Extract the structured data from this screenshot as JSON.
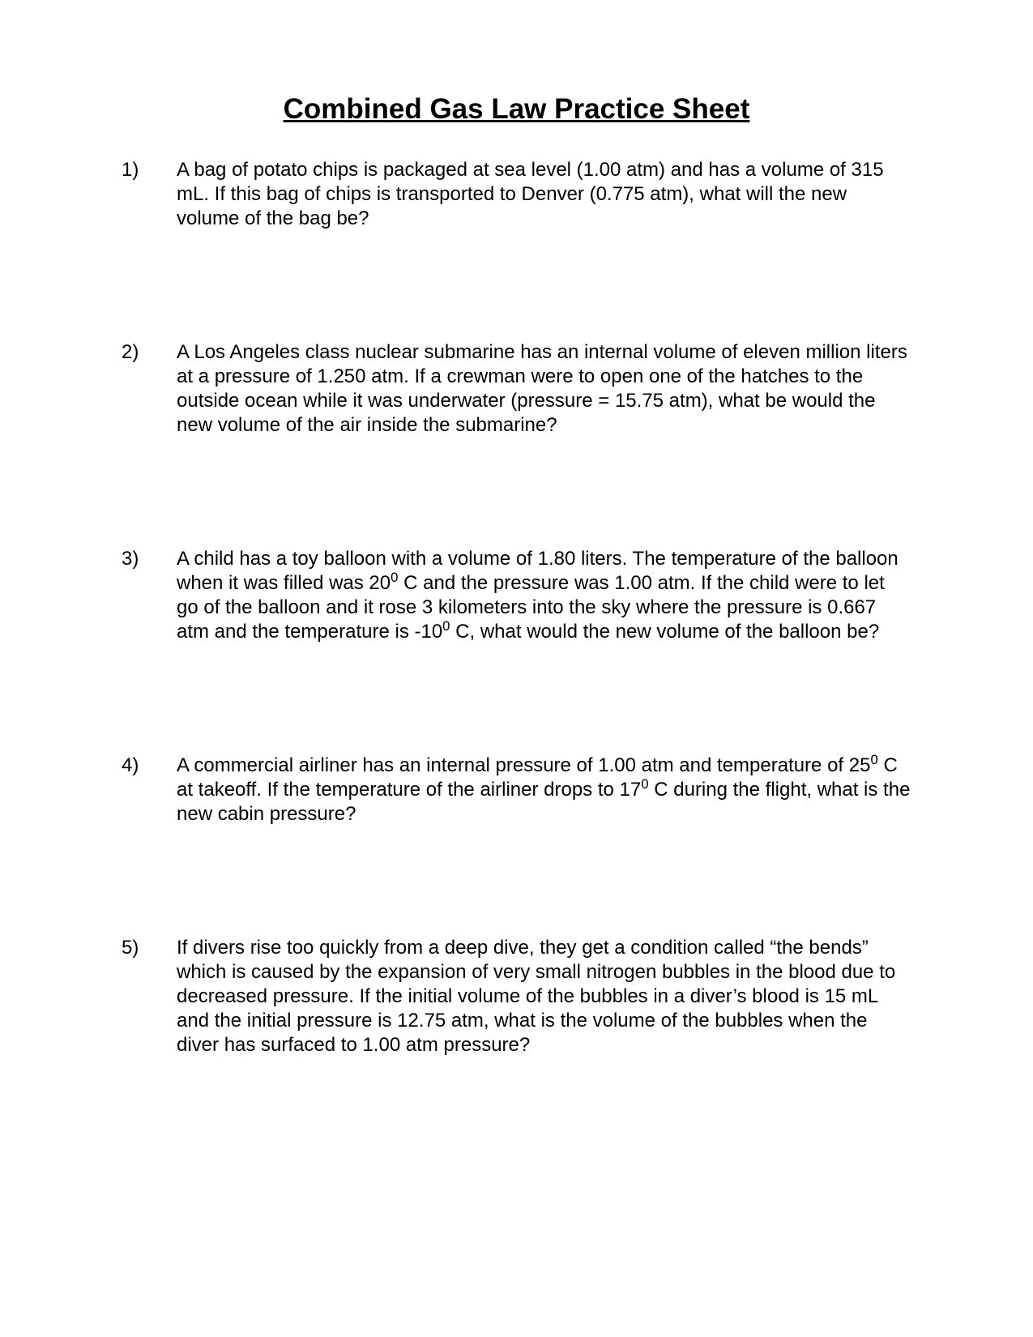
{
  "title": "Combined Gas Law Practice Sheet",
  "title_fontsize": 35,
  "body_fontsize": 24,
  "text_color": "#000000",
  "background_color": "#ffffff",
  "questions": [
    {
      "num": "1)",
      "html": "A bag of potato chips is packaged at sea level (1.00 atm) and has a volume of 315 mL.  If this bag of chips is transported to Denver (0.775 atm), what will the new volume of the bag be?"
    },
    {
      "num": "2)",
      "html": "A Los Angeles class nuclear submarine has an internal volume of eleven million liters at a pressure of 1.250 atm.  If a crewman were to open one of the hatches to the outside ocean while it was underwater (pressure = 15.75 atm), what be would the new volume of the air inside the submarine?"
    },
    {
      "num": "3)",
      "html": "A child has a toy balloon with a volume of 1.80 liters.  The temperature of the balloon when it was filled was 20<sup>0</sup> C and the pressure was 1.00 atm.  If the child were to let go of the balloon and it rose 3 kilometers into the sky where the pressure is 0.667 atm and the temperature is -10<sup>0</sup> C, what would the new volume of the balloon be?"
    },
    {
      "num": "4)",
      "html": "A commercial airliner has an internal pressure of 1.00 atm and temperature of 25<sup>0</sup> C at takeoff.  If the temperature of the airliner drops to 17<sup>0</sup> C during the flight, what is the new cabin pressure?"
    },
    {
      "num": "5)",
      "html": "If divers rise too quickly from a deep dive, they get a condition called “the bends” which is caused by the expansion of very small nitrogen bubbles in the blood due to decreased pressure.  If the initial volume of the bubbles in a diver’s blood is 15 mL and the initial pressure is 12.75 atm, what is the volume of the bubbles when the diver has surfaced to 1.00 atm pressure?"
    }
  ]
}
